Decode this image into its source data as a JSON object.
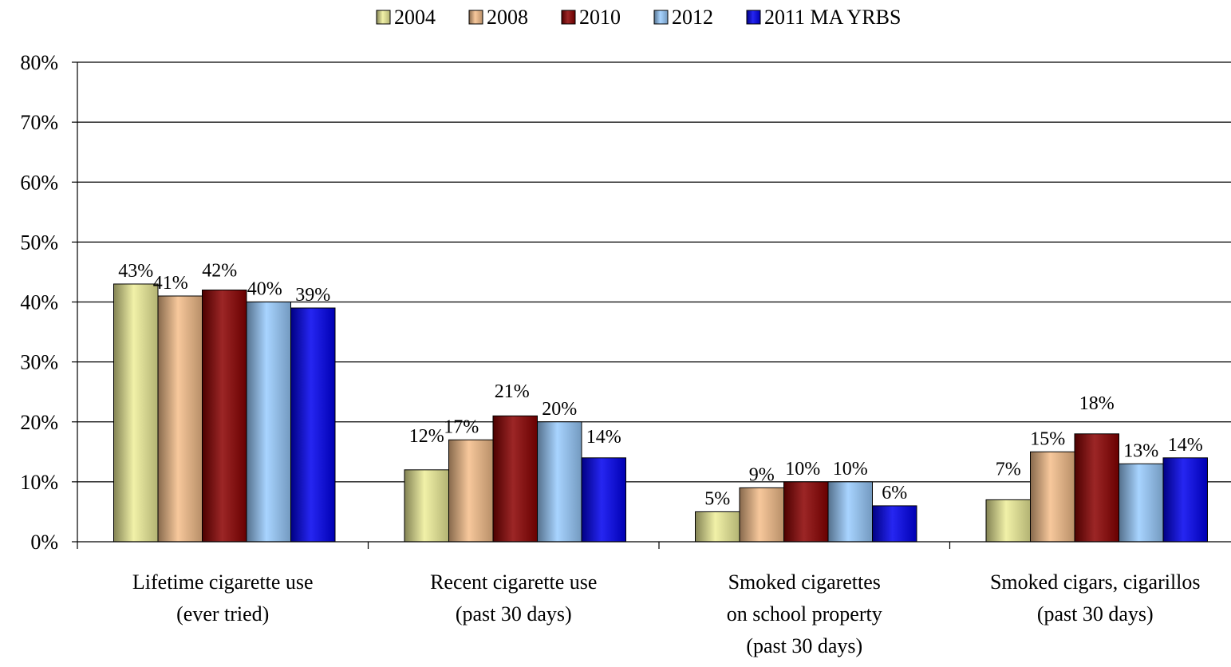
{
  "chart_data": {
    "type": "bar",
    "title": "",
    "xlabel": "",
    "ylabel": "",
    "ylim": [
      0,
      0.8
    ],
    "yticks": [
      0,
      0.1,
      0.2,
      0.3,
      0.4,
      0.5,
      0.6,
      0.7,
      0.8
    ],
    "ytick_labels": [
      "0%",
      "10%",
      "20%",
      "30%",
      "40%",
      "50%",
      "60%",
      "70%",
      "80%"
    ],
    "grid": "horizontal",
    "legend_position": "top",
    "categories": [
      [
        "Lifetime cigarette use",
        "(ever tried)"
      ],
      [
        "Recent cigarette use",
        "(past 30 days)"
      ],
      [
        "Smoked cigarettes",
        "on school property",
        "(past 30 days)"
      ],
      [
        "Smoked cigars, cigarillos",
        "(past 30 days)"
      ]
    ],
    "series": [
      {
        "name": "2004",
        "color": "#EEEE99",
        "values": [
          0.43,
          0.12,
          0.05,
          0.07
        ],
        "labels": [
          "43%",
          "12%",
          "5%",
          "7%"
        ]
      },
      {
        "name": "2008",
        "color": "#F5BE8A",
        "values": [
          0.41,
          0.17,
          0.09,
          0.15
        ],
        "labels": [
          "41%",
          "17%",
          "9%",
          "15%"
        ]
      },
      {
        "name": "2010",
        "color": "#8B0000",
        "values": [
          0.42,
          0.21,
          0.1,
          0.18
        ],
        "labels": [
          "42%",
          "21%",
          "10%",
          "18%"
        ]
      },
      {
        "name": "2012",
        "color": "#99CCFF",
        "values": [
          0.4,
          0.2,
          0.1,
          0.13
        ],
        "labels": [
          "40%",
          "20%",
          "10%",
          "13%"
        ]
      },
      {
        "name": "2011 MA YRBS",
        "color": "#0000EE",
        "values": [
          0.39,
          0.14,
          0.06,
          0.14
        ],
        "labels": [
          "39%",
          "14%",
          "6%",
          "14%"
        ]
      }
    ]
  }
}
